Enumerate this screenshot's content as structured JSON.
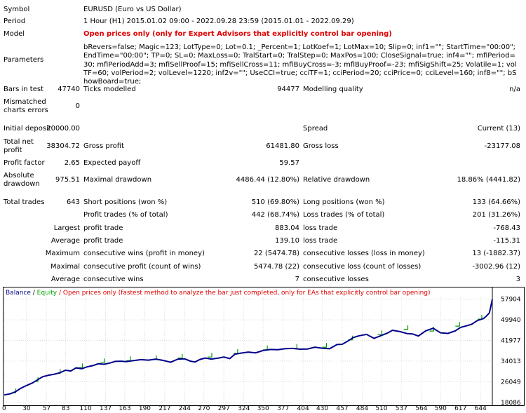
{
  "report": {
    "symbol_label": "Symbol",
    "symbol_value": "EURUSD (Euro vs US Dollar)",
    "period_label": "Period",
    "period_value": "1 Hour (H1) 2015.01.02 09:00 - 2022.09.28 23:59 (2015.01.01 - 2022.09.29)",
    "model_label": "Model",
    "model_value": "Open prices only (only for Expert Advisors that explicitly control bar opening)",
    "parameters_label": "Parameters",
    "parameters_value": "bRevers=false; Magic=123; LotType=0; Lot=0.1; _Percent=1; LotKoef=1; LotMax=10; Slip=0; inf1=\"\"; StartTime=\"00:00\"; EndTime=\"00:00\"; TP=0; SL=0; MaxLoss=0; TralStart=0; TralStep=0; MaxPos=100; CloseSignal=true; inf4=\"\"; mfiPeriod=30; mfiPeriodAdd=3; mfiSellProof=15; mfiSellCross=11; mfiBuyCross=-3; mfiBuyProof=-23; mfiSigShift=25; Volatile=1; volTF=60; volPeriod=2; volLevel=1220; inf2v=\"\"; UseCCI=true; cciTF=1; cciPeriod=20; cciPrice=0; cciLevel=160; inf8=\"\"; bShowBoard=true;"
  },
  "stats": {
    "bars_label": "Bars in test",
    "bars_value": "47740",
    "ticks_label": "Ticks modelled",
    "ticks_value": "94477",
    "quality_label": "Modelling quality",
    "quality_value": "n/a",
    "mismatch_label_1": "Mismatched",
    "mismatch_label_2": "charts errors",
    "mismatch_value": "0",
    "deposit_label": "Initial deposit",
    "deposit_value": "20000.00",
    "spread_label": "Spread",
    "spread_value": "Current (13)",
    "net_label_1": "Total net",
    "net_label_2": "profit",
    "net_value": "38304.72",
    "gross_profit_label": "Gross profit",
    "gross_profit_value": "61481.80",
    "gross_loss_label": "Gross loss",
    "gross_loss_value": "-23177.08",
    "pf_label": "Profit factor",
    "pf_value": "2.65",
    "payoff_label": "Expected payoff",
    "payoff_value": "59.57",
    "abs_dd_label_1": "Absolute",
    "abs_dd_label_2": "drawdown",
    "abs_dd_value": "975.51",
    "max_dd_label": "Maximal drawdown",
    "max_dd_value": "4486.44 (12.80%)",
    "rel_dd_label": "Relative drawdown",
    "rel_dd_value": "18.86% (4441.82)",
    "trades_label": "Total trades",
    "trades_value": "643",
    "short_label": "Short positions (won %)",
    "short_value": "510 (69.80%)",
    "long_label": "Long positions (won %)",
    "long_value": "133 (64.66%)",
    "profit_trades_label": "Profit trades (% of total)",
    "profit_trades_value": "442 (68.74%)",
    "loss_trades_label": "Loss trades (% of total)",
    "loss_trades_value": "201 (31.26%)",
    "largest_label": "Largest",
    "largest_profit_label": "profit trade",
    "largest_profit_value": "883.04",
    "largest_loss_label": "loss trade",
    "largest_loss_value": "-768.43",
    "average_label": "Average",
    "average_profit_label": "profit trade",
    "average_profit_value": "139.10",
    "average_loss_label": "loss trade",
    "average_loss_value": "-115.31",
    "maximum_label": "Maximum",
    "max_wins_label": "consecutive wins (profit in money)",
    "max_wins_value": "22 (5474.78)",
    "max_losses_label": "consecutive losses (loss in money)",
    "max_losses_value": "13 (-1882.37)",
    "maximal_label": "Maximal",
    "maximal_profit_label": "consecutive profit (count of wins)",
    "maximal_profit_value": "5474.78 (22)",
    "maximal_loss_label": "consecutive loss (count of losses)",
    "maximal_loss_value": "-3002.96 (12)",
    "avg_consec_label": "Average",
    "avg_wins_label": "consecutive wins",
    "avg_wins_value": "7",
    "avg_losses_label": "consecutive losses",
    "avg_losses_value": "3"
  },
  "chart_legend": {
    "balance": "Balance",
    "sep": " / ",
    "equity": "Equity",
    "note": " / Open prices only (fastest method to analyze the bar just completed, only for EAs that explicitly control bar opening)"
  },
  "chart_data": {
    "type": "line",
    "x_ticks": [
      0,
      30,
      57,
      83,
      110,
      137,
      163,
      190,
      217,
      244,
      270,
      297,
      324,
      350,
      377,
      404,
      430,
      457,
      484,
      510,
      537,
      564,
      590,
      617,
      644
    ],
    "y_ticks": [
      18086,
      26049,
      34013,
      41977,
      49940,
      57904
    ],
    "xlim": [
      0,
      660
    ],
    "ylim": [
      18086,
      58600
    ],
    "series": [
      {
        "color": "#00008b",
        "x": [
          0,
          8,
          15,
          22,
          30,
          38,
          45,
          52,
          60,
          68,
          75,
          83,
          90,
          97,
          105,
          112,
          120,
          127,
          135,
          143,
          150,
          158,
          165,
          175,
          185,
          195,
          205,
          215,
          225,
          235,
          244,
          252,
          258,
          265,
          272,
          280,
          290,
          297,
          305,
          312,
          320,
          330,
          340,
          350,
          360,
          370,
          380,
          390,
          400,
          410,
          420,
          430,
          440,
          450,
          457,
          465,
          472,
          480,
          490,
          500,
          510,
          518,
          525,
          535,
          545,
          552,
          560,
          570,
          580,
          590,
          600,
          610,
          617,
          625,
          632,
          640,
          648,
          652,
          656,
          660
        ],
        "y": [
          21000,
          21400,
          22200,
          23500,
          24600,
          25600,
          26800,
          28000,
          28600,
          29000,
          29500,
          30500,
          30200,
          31400,
          31100,
          31800,
          32300,
          33000,
          32800,
          33300,
          33900,
          34000,
          33800,
          34200,
          34600,
          34400,
          34800,
          34300,
          33600,
          34800,
          34900,
          34000,
          33700,
          34700,
          35200,
          34800,
          35200,
          35600,
          35000,
          36700,
          37100,
          37500,
          37200,
          38100,
          38500,
          38400,
          38800,
          38900,
          38600,
          38700,
          39400,
          39000,
          38800,
          40400,
          40500,
          41800,
          43100,
          43800,
          44300,
          42800,
          43900,
          44800,
          45900,
          45400,
          44600,
          44500,
          43700,
          45700,
          46700,
          44900,
          44700,
          45700,
          47000,
          47600,
          48200,
          49700,
          50400,
          51400,
          52600,
          57800
        ]
      },
      {
        "color": "#00a000",
        "x": [
          10,
          40,
          70,
          100,
          130,
          165,
          200,
          235,
          275,
          310,
          350,
          390,
          430,
          465,
          505,
          540,
          575,
          610,
          640
        ],
        "y": [
          21800,
          26200,
          29300,
          31500,
          33400,
          34200,
          34600,
          35200,
          35600,
          37000,
          38400,
          39000,
          39400,
          42200,
          44200,
          46200,
          45600,
          47500,
          50200
        ]
      }
    ]
  }
}
